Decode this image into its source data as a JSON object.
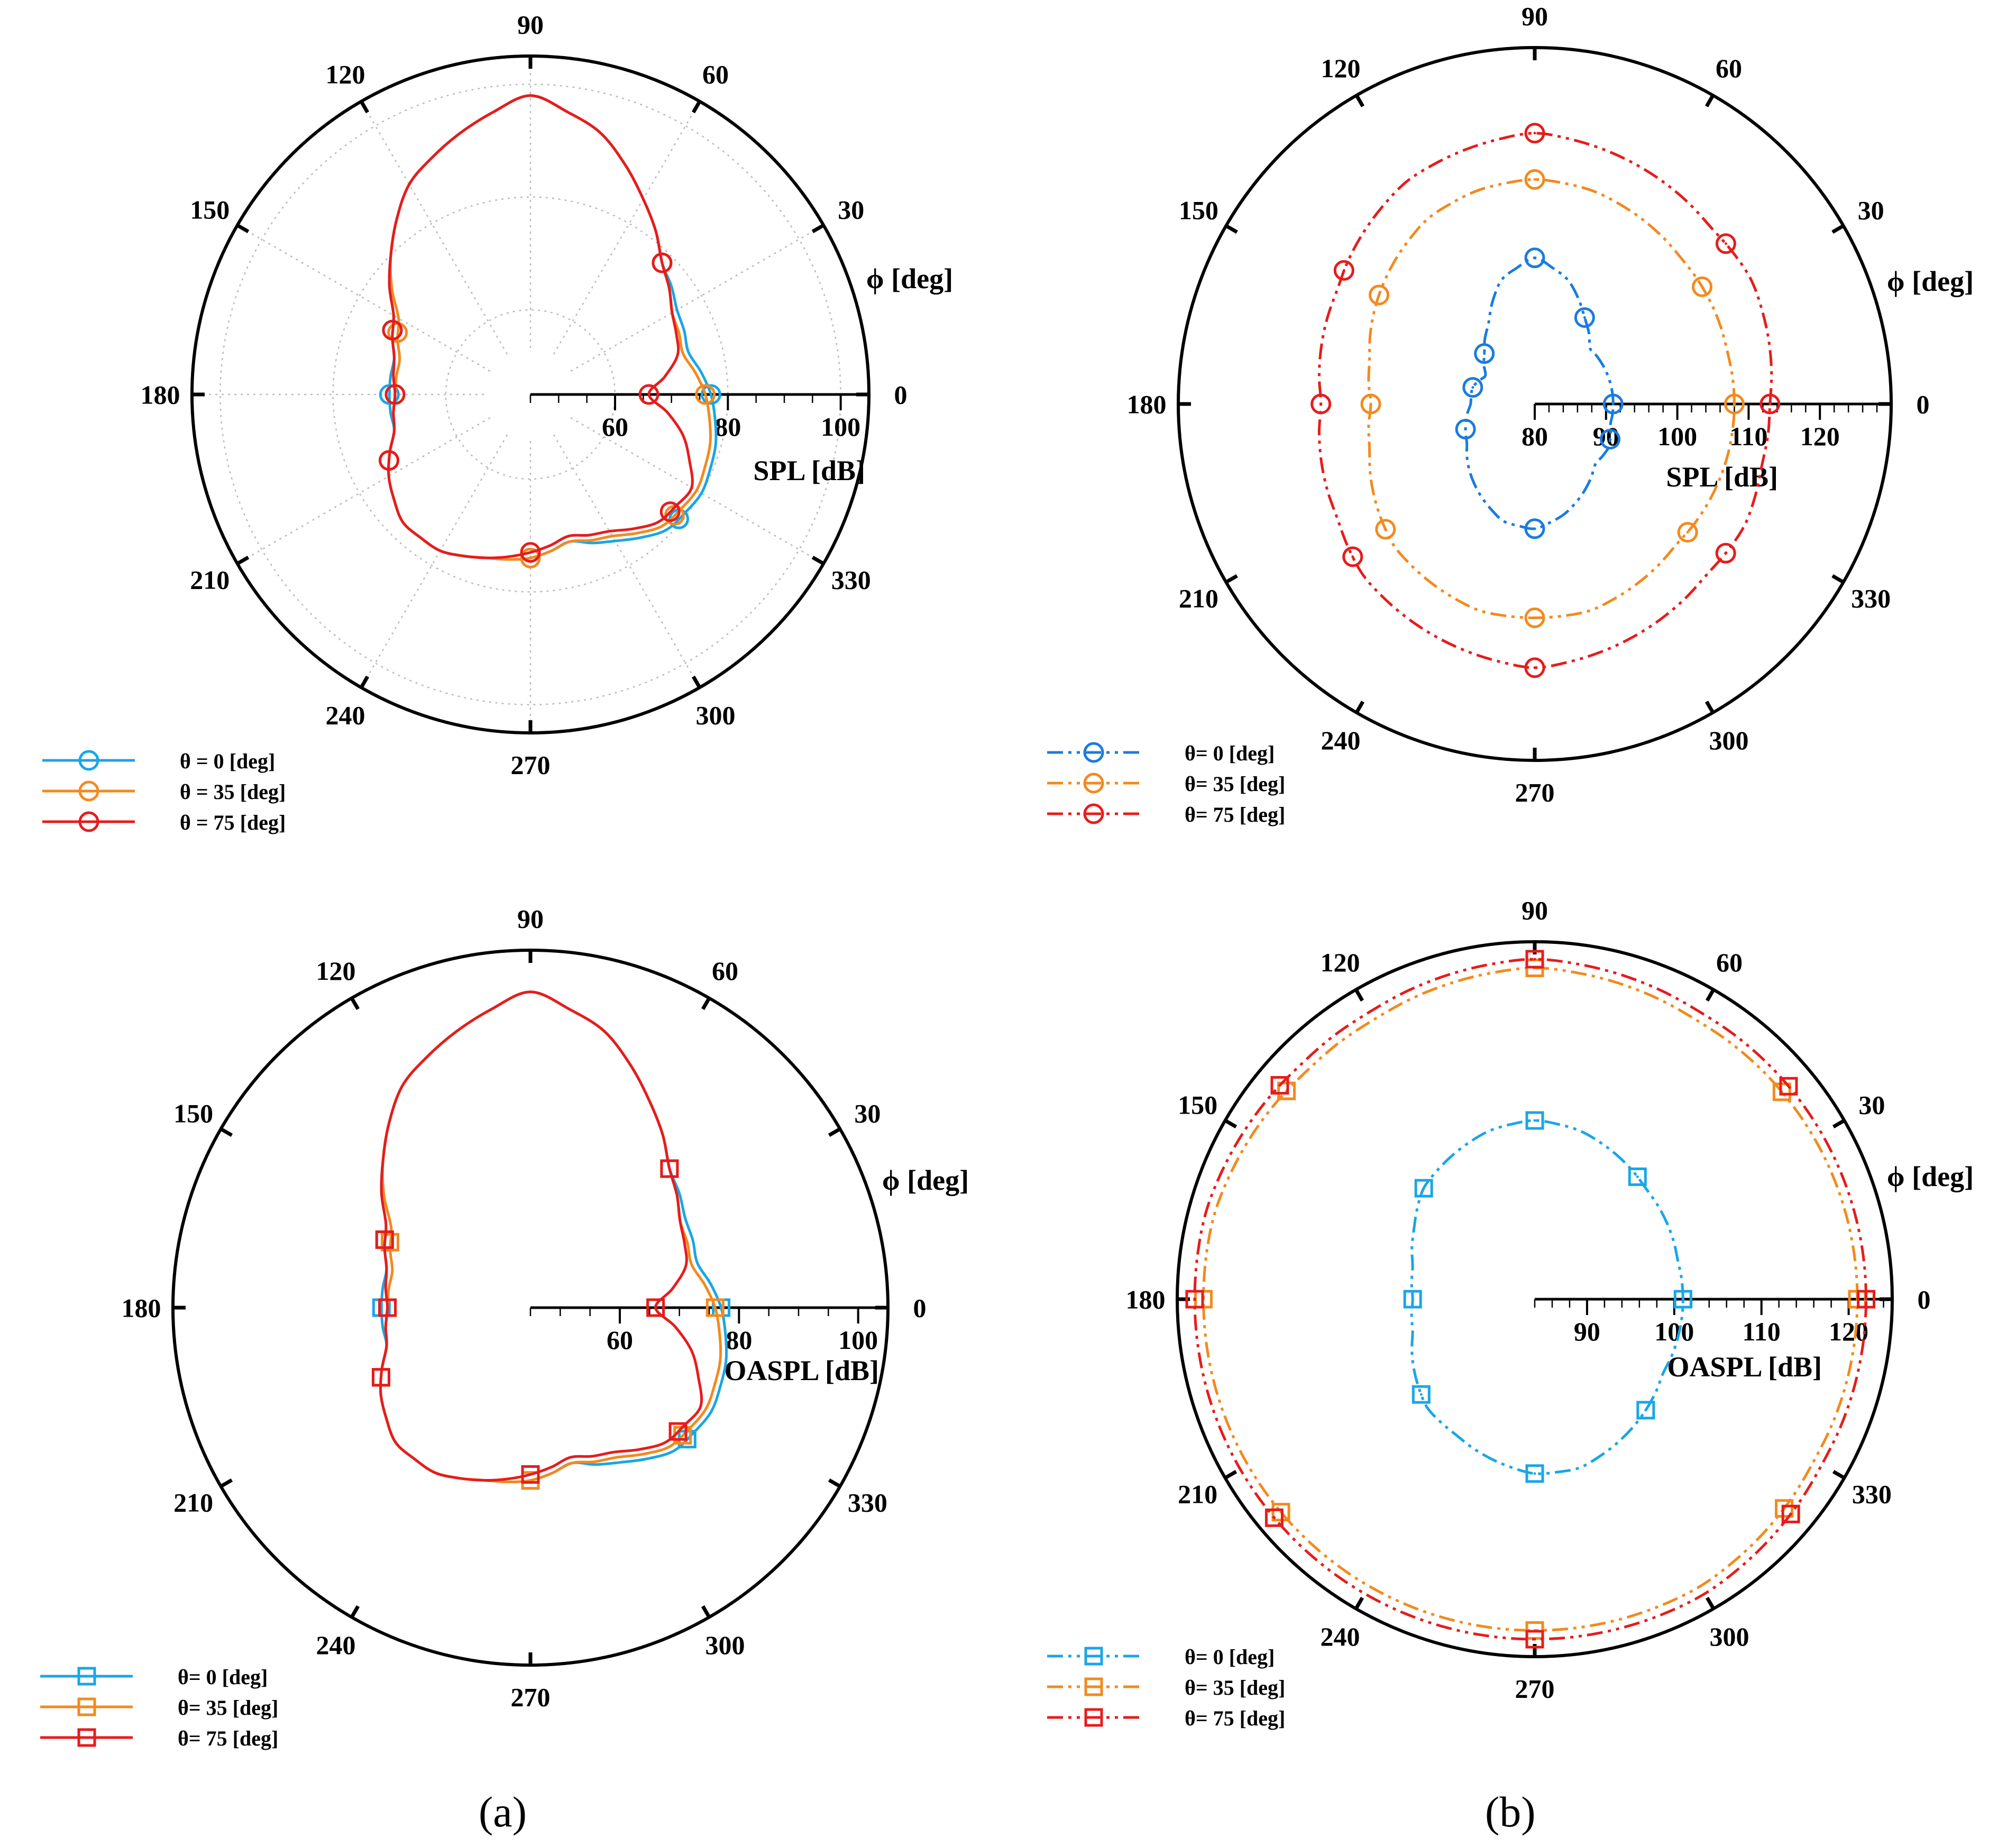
{
  "captions": {
    "a": "(a)",
    "b": "(b)"
  },
  "chart_data": [
    {
      "type": "polar-line",
      "panel": "top-left",
      "angle_label": "ϕ [deg]",
      "radial_label": "SPL [dB]",
      "angle_ticks": [
        "0",
        "30",
        "60",
        "90",
        "120",
        "150",
        "180",
        "210",
        "240",
        "270",
        "300",
        "330"
      ],
      "radial_range": [
        45,
        105
      ],
      "radial_ticks": [
        "60",
        "80",
        "100"
      ],
      "radial_tick_values": [
        60,
        80,
        100
      ],
      "minor_step": 5,
      "grid": true,
      "marker": "circle",
      "line_style": "solid",
      "legend_position": "bottom-left",
      "series": [
        {
          "name": "θ = 0 [deg]",
          "color": "#19a6e6",
          "angles": [
            0,
            15,
            30,
            45,
            60,
            75,
            90,
            105,
            120,
            135,
            150,
            165,
            180,
            195,
            210,
            225,
            240,
            255,
            270,
            285,
            300,
            315,
            330,
            345
          ],
          "values": [
            77,
            74,
            75,
            78,
            85,
            93,
            98,
            93,
            88,
            80,
            73,
            70,
            70,
            70,
            74,
            77,
            77,
            75,
            74,
            72,
            75,
            79,
            80,
            79
          ],
          "markers_at": [
            0,
            45,
            155,
            180,
            205,
            270,
            320
          ]
        },
        {
          "name": "θ = 35 [deg]",
          "color": "#f28a1e",
          "angles": [
            0,
            15,
            30,
            45,
            60,
            75,
            90,
            105,
            120,
            135,
            150,
            165,
            180,
            195,
            210,
            225,
            240,
            255,
            270,
            285,
            300,
            315,
            330,
            345
          ],
          "values": [
            76,
            73,
            74,
            78,
            85,
            93,
            98,
            93,
            88,
            80,
            72,
            69,
            69,
            70,
            74,
            77,
            77,
            75,
            74,
            72,
            74,
            78,
            79,
            78
          ],
          "markers_at": [
            0,
            45,
            155,
            180,
            205,
            270,
            320
          ]
        },
        {
          "name": "θ = 75 [deg]",
          "color": "#e61c1c",
          "angles": [
            0,
            15,
            30,
            45,
            60,
            75,
            90,
            105,
            120,
            135,
            150,
            165,
            180,
            195,
            210,
            225,
            240,
            255,
            270,
            285,
            300,
            315,
            330,
            345
          ],
          "values": [
            66,
            72,
            74,
            78,
            85,
            93,
            98,
            93,
            88,
            80,
            73,
            70,
            69,
            70,
            74,
            77,
            77,
            75,
            73,
            71,
            73,
            77,
            78,
            73
          ],
          "markers_at": [
            0,
            45,
            155,
            180,
            205,
            270,
            320
          ]
        }
      ]
    },
    {
      "type": "polar-line",
      "panel": "top-right",
      "angle_label": "ϕ [deg]",
      "radial_label": "SPL [dB]",
      "angle_ticks": [
        "0",
        "30",
        "60",
        "90",
        "120",
        "150",
        "180",
        "210",
        "240",
        "270",
        "300",
        "330"
      ],
      "radial_range": [
        80,
        130
      ],
      "radial_ticks": [
        "80",
        "90",
        "100",
        "110",
        "120"
      ],
      "radial_tick_values": [
        80,
        90,
        100,
        110,
        120
      ],
      "minor_step": 2,
      "grid": false,
      "marker": "circle",
      "line_style": "dash-dot-dot",
      "legend_position": "bottom-left",
      "series": [
        {
          "name": "θ= 0 [deg]",
          "color": "#1a7be0",
          "angles": [
            0,
            15,
            30,
            45,
            60,
            75,
            90,
            105,
            120,
            135,
            150,
            165,
            180,
            195,
            210,
            225,
            240,
            255,
            270,
            285,
            300,
            315,
            330,
            345
          ],
          "values": [
            91,
            91,
            91,
            91,
            94,
            98,
            100.5,
            98,
            93,
            90,
            88,
            89,
            89,
            90,
            91,
            93,
            95,
            97,
            97.5,
            96,
            94,
            92,
            92,
            91
          ],
          "markers_at": [
            0,
            60,
            90,
            135,
            165,
            200,
            270,
            335
          ]
        },
        {
          "name": "θ= 35 [deg]",
          "color": "#f28a1e",
          "angles": [
            0,
            15,
            30,
            45,
            60,
            75,
            90,
            105,
            120,
            135,
            150,
            165,
            180,
            195,
            210,
            225,
            240,
            255,
            270,
            285,
            300,
            315,
            330,
            345
          ],
          "values": [
            108,
            108,
            108.5,
            109,
            110,
            111,
            111.5,
            111,
            110,
            108,
            106,
            104,
            103,
            104,
            106,
            108,
            109,
            110,
            110,
            110,
            109,
            108,
            108,
            108
          ],
          "markers_at": [
            0,
            35,
            90,
            145,
            180,
            220,
            270,
            320
          ]
        },
        {
          "name": "θ= 75 [deg]",
          "color": "#e61c1c",
          "angles": [
            0,
            15,
            30,
            45,
            60,
            75,
            90,
            105,
            120,
            135,
            150,
            165,
            180,
            195,
            210,
            225,
            240,
            255,
            270,
            285,
            300,
            315,
            330,
            345
          ],
          "values": [
            113,
            114,
            115,
            115,
            116,
            117,
            118,
            117,
            116,
            114,
            112,
            111,
            110,
            111,
            112,
            114,
            115,
            116,
            117,
            116,
            115,
            114,
            114,
            113
          ],
          "markers_at": [
            0,
            40,
            90,
            145,
            180,
            220,
            270,
            322
          ]
        }
      ]
    },
    {
      "type": "polar-line",
      "panel": "bottom-left",
      "angle_label": "ϕ [deg]",
      "radial_label": "OASPL [dB]",
      "angle_ticks": [
        "0",
        "30",
        "60",
        "90",
        "120",
        "150",
        "180",
        "210",
        "240",
        "270",
        "300",
        "330"
      ],
      "radial_range": [
        45,
        105
      ],
      "radial_ticks": [
        "60",
        "80",
        "100"
      ],
      "radial_tick_values": [
        60,
        80,
        100
      ],
      "minor_step": 5,
      "grid": false,
      "marker": "square",
      "line_style": "solid",
      "legend_position": "bottom-left",
      "series": [
        {
          "name": "θ= 0 [deg]",
          "color": "#19a6e6",
          "angles": [
            0,
            15,
            30,
            45,
            60,
            75,
            90,
            105,
            120,
            135,
            150,
            165,
            180,
            195,
            210,
            225,
            240,
            255,
            270,
            285,
            300,
            315,
            330,
            345
          ],
          "values": [
            77,
            74,
            75,
            78,
            85,
            93,
            98,
            93,
            88,
            80,
            73,
            70,
            70,
            70,
            74,
            77,
            77,
            75,
            74,
            72,
            75,
            79,
            80,
            79
          ],
          "markers_at": [
            0,
            45,
            155,
            180,
            205,
            270,
            320
          ]
        },
        {
          "name": "θ= 35 [deg]",
          "color": "#f28a1e",
          "angles": [
            0,
            15,
            30,
            45,
            60,
            75,
            90,
            105,
            120,
            135,
            150,
            165,
            180,
            195,
            210,
            225,
            240,
            255,
            270,
            285,
            300,
            315,
            330,
            345
          ],
          "values": [
            76,
            73,
            74,
            78,
            85,
            93,
            98,
            93,
            88,
            80,
            72,
            69,
            69,
            70,
            74,
            77,
            77,
            75,
            74,
            72,
            74,
            78,
            79,
            78
          ],
          "markers_at": [
            0,
            45,
            155,
            180,
            205,
            270,
            320
          ]
        },
        {
          "name": "θ= 75 [deg]",
          "color": "#e61c1c",
          "angles": [
            0,
            15,
            30,
            45,
            60,
            75,
            90,
            105,
            120,
            135,
            150,
            165,
            180,
            195,
            210,
            225,
            240,
            255,
            270,
            285,
            300,
            315,
            330,
            345
          ],
          "values": [
            66,
            72,
            74,
            78,
            85,
            93,
            98,
            93,
            88,
            80,
            73,
            70,
            69,
            70,
            74,
            77,
            77,
            75,
            73,
            71,
            73,
            77,
            78,
            73
          ],
          "markers_at": [
            0,
            45,
            155,
            180,
            205,
            270,
            320
          ]
        }
      ]
    },
    {
      "type": "polar-line",
      "panel": "bottom-right",
      "angle_label": "ϕ [deg]",
      "radial_label": "OASPL [dB]",
      "angle_ticks": [
        "0",
        "30",
        "60",
        "90",
        "120",
        "150",
        "180",
        "210",
        "240",
        "270",
        "300",
        "330"
      ],
      "radial_range": [
        84,
        125
      ],
      "radial_ticks": [
        "90",
        "100",
        "110",
        "120"
      ],
      "radial_tick_values": [
        90,
        100,
        110,
        120
      ],
      "minor_step": 2,
      "grid": false,
      "marker": "square",
      "line_style": "dash-dot-dot",
      "legend_position": "bottom-left",
      "series": [
        {
          "name": "θ= 0 [deg]",
          "color": "#19a6e6",
          "angles": [
            0,
            15,
            30,
            45,
            60,
            75,
            90,
            105,
            120,
            135,
            150,
            165,
            180,
            195,
            210,
            225,
            240,
            255,
            270,
            285,
            300,
            315,
            330,
            345
          ],
          "values": [
            101,
            101,
            101.5,
            102,
            103,
            104,
            104.5,
            104,
            103,
            102,
            100,
            98.5,
            98,
            98.5,
            100,
            101.5,
            102,
            103,
            104,
            104,
            103,
            102,
            101,
            101
          ],
          "markers_at": [
            0,
            50,
            90,
            135,
            180,
            220,
            270,
            315
          ]
        },
        {
          "name": "θ= 35 [deg]",
          "color": "#f28a1e",
          "angles": [
            0,
            15,
            30,
            45,
            60,
            75,
            90,
            105,
            120,
            135,
            150,
            165,
            180,
            195,
            210,
            225,
            240,
            255,
            270,
            285,
            300,
            315,
            330,
            345
          ],
          "values": [
            121,
            121,
            121,
            121,
            121,
            121.5,
            122,
            121.5,
            121,
            121,
            121.5,
            122,
            122,
            122,
            122,
            122,
            122,
            122,
            122,
            122,
            122,
            121.5,
            121,
            121
          ],
          "markers_at": [
            0,
            40,
            90,
            140,
            180,
            220,
            270,
            320
          ]
        },
        {
          "name": "θ= 75 [deg]",
          "color": "#e61c1c",
          "angles": [
            0,
            15,
            30,
            45,
            60,
            75,
            90,
            105,
            120,
            135,
            150,
            165,
            180,
            195,
            210,
            225,
            240,
            255,
            270,
            285,
            300,
            315,
            330,
            345
          ],
          "values": [
            122,
            122,
            122,
            122,
            122,
            122.5,
            123,
            122.5,
            122,
            122,
            122.5,
            123,
            123,
            123,
            123,
            123,
            123,
            123,
            123,
            123,
            123,
            122.5,
            122,
            122
          ],
          "markers_at": [
            0,
            40,
            90,
            140,
            180,
            220,
            270,
            320
          ]
        }
      ]
    }
  ]
}
